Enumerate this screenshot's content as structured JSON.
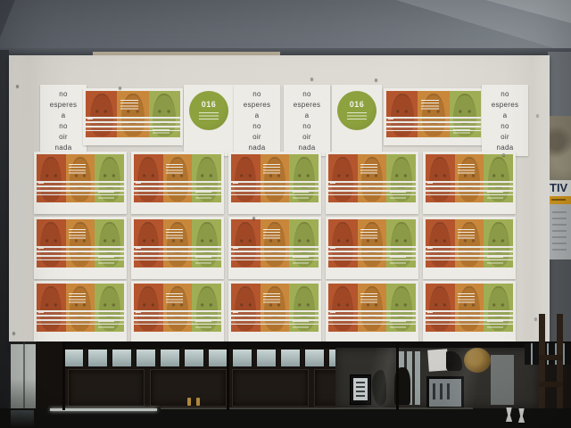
{
  "board": {
    "hotline_number": "016",
    "text_poster_words": [
      "no",
      "esperes",
      "a",
      "no",
      "oir",
      "nada"
    ],
    "top_row": [
      {
        "type": "text"
      },
      {
        "type": "faces"
      },
      {
        "type": "circle"
      },
      {
        "type": "text"
      },
      {
        "type": "text"
      },
      {
        "type": "circle"
      },
      {
        "type": "faces"
      },
      {
        "type": "text"
      }
    ],
    "grid": {
      "rows": 3,
      "columns": 5
    }
  },
  "wall_poster": {
    "headline_fragment": "TIV"
  },
  "colors": {
    "panel_red": "#b4552e",
    "panel_orange": "#c8873b",
    "panel_green": "#9fae54",
    "circle_green": "#8da23e",
    "headline_yellow": "#d6991f",
    "board_surface": "#d8d5ce"
  }
}
